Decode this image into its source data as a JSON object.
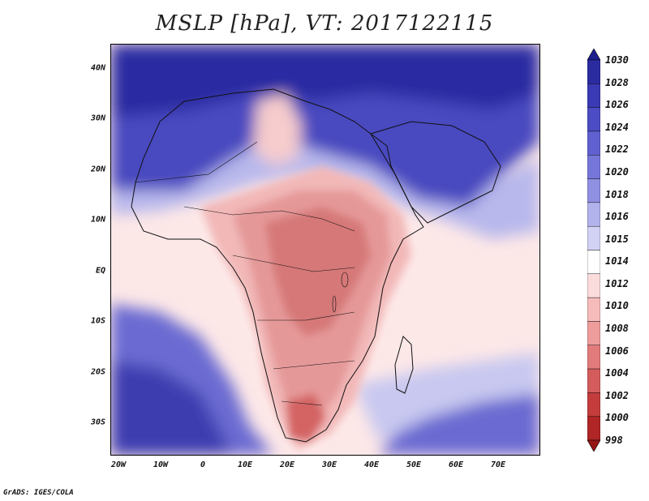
{
  "title": "MSLP [hPa], VT: 2017122115",
  "credit": "GrADS: IGES/COLA",
  "y_axis_labels": [
    "40N",
    "30N",
    "20N",
    "10N",
    "EQ",
    "10S",
    "20S",
    "30S"
  ],
  "x_axis_labels": [
    "20W",
    "10W",
    "0",
    "10E",
    "20E",
    "30E",
    "40E",
    "50E",
    "60E",
    "70E"
  ],
  "colorbar": {
    "levels": [
      "1030",
      "1028",
      "1026",
      "1024",
      "1022",
      "1020",
      "1018",
      "1016",
      "1015",
      "1014",
      "1012",
      "1010",
      "1008",
      "1006",
      "1004",
      "1002",
      "1000",
      "998"
    ],
    "colors": [
      "#1e1e8c",
      "#2b2ba0",
      "#3a3ab4",
      "#4c4cc4",
      "#6060d0",
      "#7676da",
      "#9090e2",
      "#b2b2ec",
      "#d2d2f4",
      "#ffffff",
      "#fbdcdc",
      "#f6bcbc",
      "#ee9c9c",
      "#e27c7c",
      "#d45c5c",
      "#c43c3c",
      "#b02626",
      "#961616"
    ]
  },
  "map": {
    "ocean_blue_strong": "#3c3cb0",
    "ocean_blue": "#6a6ad2",
    "ocean_light": "#c8c8f0",
    "neutral": "#fff4f4",
    "land_warm": "#f4c2c2",
    "land_hot": "#e39090",
    "land_hotter": "#d46c6c"
  }
}
